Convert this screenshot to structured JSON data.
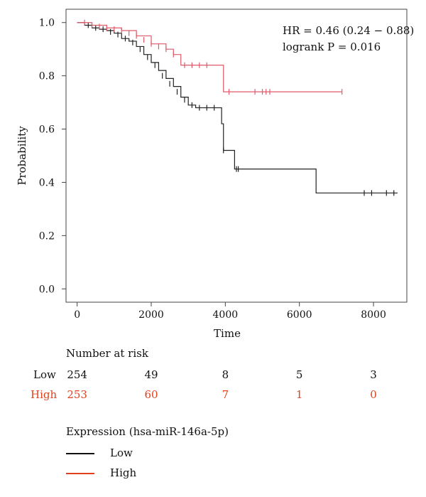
{
  "chart_data": {
    "type": "line",
    "subtype": "kaplan-meier",
    "title": "",
    "xlabel": "Time",
    "ylabel": "Probability",
    "xlim": [
      -300,
      8900
    ],
    "ylim": [
      -0.05,
      1.05
    ],
    "xticks": [
      0,
      2000,
      4000,
      6000,
      8000
    ],
    "xtick_labels": [
      "0",
      "2000",
      "4000",
      "6000",
      "8000"
    ],
    "yticks": [
      0.0,
      0.2,
      0.4,
      0.6,
      0.8,
      1.0
    ],
    "ytick_labels": [
      "0.0",
      "0.2",
      "0.4",
      "0.6",
      "0.8",
      "1.0"
    ],
    "grid": false,
    "annotations": [
      "HR = 0.46 (0.24 − 0.88)",
      "logrank P = 0.016"
    ],
    "series": [
      {
        "name": "Low",
        "color": "#222222",
        "steps": [
          [
            0,
            1.0
          ],
          [
            200,
            0.99
          ],
          [
            400,
            0.98
          ],
          [
            600,
            0.975
          ],
          [
            800,
            0.97
          ],
          [
            1000,
            0.96
          ],
          [
            1200,
            0.94
          ],
          [
            1400,
            0.93
          ],
          [
            1600,
            0.91
          ],
          [
            1800,
            0.88
          ],
          [
            2000,
            0.85
          ],
          [
            2200,
            0.82
          ],
          [
            2400,
            0.79
          ],
          [
            2600,
            0.76
          ],
          [
            2800,
            0.72
          ],
          [
            3000,
            0.69
          ],
          [
            3200,
            0.68
          ],
          [
            3900,
            0.62
          ],
          [
            3950,
            0.52
          ],
          [
            4250,
            0.45
          ],
          [
            6450,
            0.36
          ],
          [
            8650,
            0.36
          ]
        ],
        "censors": [
          [
            300,
            0.99
          ],
          [
            500,
            0.98
          ],
          [
            700,
            0.975
          ],
          [
            900,
            0.965
          ],
          [
            1100,
            0.955
          ],
          [
            1300,
            0.94
          ],
          [
            1500,
            0.925
          ],
          [
            1700,
            0.9
          ],
          [
            1900,
            0.87
          ],
          [
            2100,
            0.84
          ],
          [
            2300,
            0.8
          ],
          [
            2500,
            0.77
          ],
          [
            2700,
            0.74
          ],
          [
            2900,
            0.71
          ],
          [
            3100,
            0.69
          ],
          [
            3300,
            0.68
          ],
          [
            3500,
            0.68
          ],
          [
            3700,
            0.68
          ],
          [
            3950,
            0.52
          ],
          [
            4300,
            0.45
          ],
          [
            4350,
            0.45
          ],
          [
            7750,
            0.36
          ],
          [
            7950,
            0.36
          ],
          [
            8350,
            0.36
          ],
          [
            8550,
            0.36
          ]
        ]
      },
      {
        "name": "High",
        "color": "#e05a6a",
        "steps": [
          [
            0,
            1.0
          ],
          [
            400,
            0.99
          ],
          [
            800,
            0.98
          ],
          [
            1200,
            0.97
          ],
          [
            1600,
            0.95
          ],
          [
            2000,
            0.92
          ],
          [
            2400,
            0.9
          ],
          [
            2600,
            0.88
          ],
          [
            2800,
            0.84
          ],
          [
            3950,
            0.74
          ],
          [
            7150,
            0.74
          ]
        ],
        "censors": [
          [
            200,
            1.0
          ],
          [
            400,
            0.99
          ],
          [
            600,
            0.985
          ],
          [
            800,
            0.98
          ],
          [
            1000,
            0.975
          ],
          [
            1200,
            0.97
          ],
          [
            1400,
            0.96
          ],
          [
            1600,
            0.95
          ],
          [
            1800,
            0.935
          ],
          [
            2000,
            0.92
          ],
          [
            2200,
            0.91
          ],
          [
            2400,
            0.9
          ],
          [
            2600,
            0.88
          ],
          [
            2900,
            0.84
          ],
          [
            3100,
            0.84
          ],
          [
            3300,
            0.84
          ],
          [
            3500,
            0.84
          ],
          [
            4100,
            0.74
          ],
          [
            4800,
            0.74
          ],
          [
            5000,
            0.74
          ],
          [
            5100,
            0.74
          ],
          [
            5200,
            0.74
          ],
          [
            7150,
            0.74
          ]
        ]
      }
    ]
  },
  "risk_table": {
    "title": "Number at risk",
    "rows": [
      {
        "label": "Low",
        "color": "#111111",
        "values": [
          "254",
          "49",
          "8",
          "5",
          "3"
        ]
      },
      {
        "label": "High",
        "color": "#e0401c",
        "values": [
          "253",
          "60",
          "7",
          "1",
          "0"
        ]
      }
    ]
  },
  "legend": {
    "title": "Expression (hsa-miR-146a-5p)",
    "items": [
      {
        "label": "Low",
        "color": "#111111"
      },
      {
        "label": "High",
        "color": "#e0401c"
      }
    ]
  }
}
